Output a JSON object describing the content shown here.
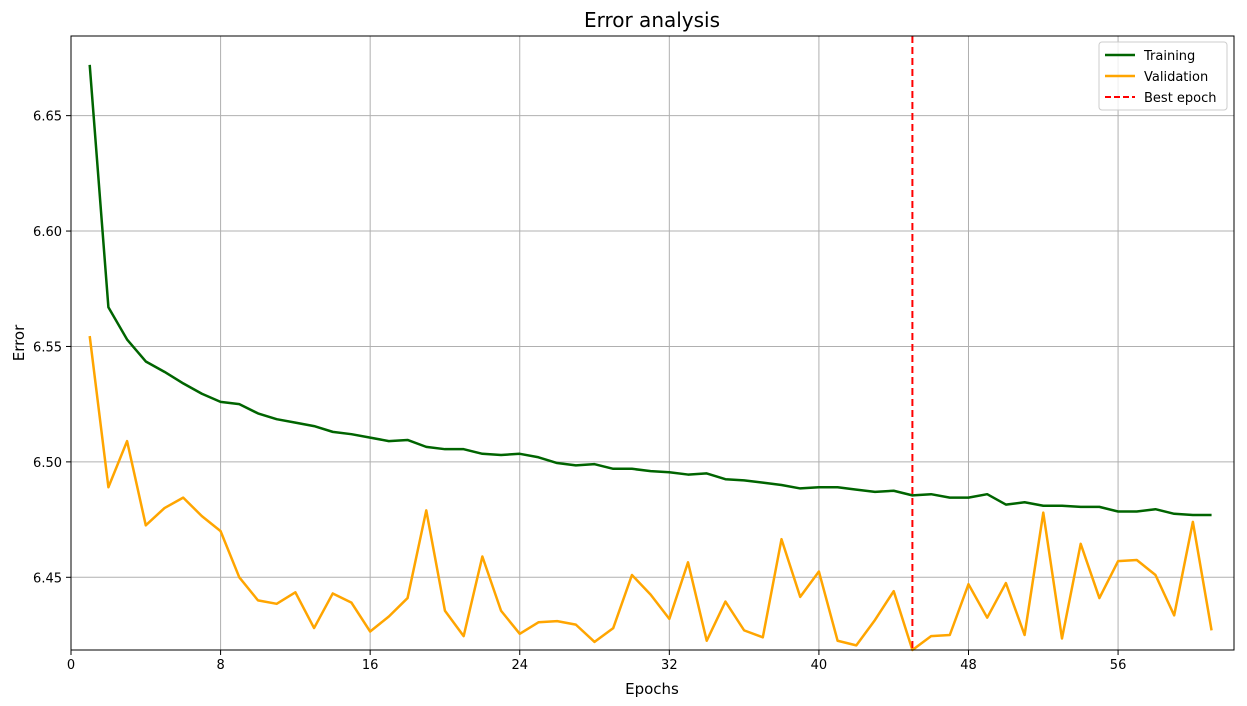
{
  "chart_data": {
    "type": "line",
    "title": "Error analysis",
    "xlabel": "Epochs",
    "ylabel": "Error",
    "xlim": [
      0,
      62.2
    ],
    "ylim": [
      6.4185,
      6.6845
    ],
    "xticks": [
      0,
      8,
      16,
      24,
      32,
      40,
      48,
      56
    ],
    "yticks": [
      6.45,
      6.5,
      6.55,
      6.6,
      6.65
    ],
    "ytick_labels": [
      "6.45",
      "6.50",
      "6.55",
      "6.60",
      "6.65"
    ],
    "grid": true,
    "legend_position": "top-right",
    "x": [
      1,
      2,
      3,
      4,
      5,
      6,
      7,
      8,
      9,
      10,
      11,
      12,
      13,
      14,
      15,
      16,
      17,
      18,
      19,
      20,
      21,
      22,
      23,
      24,
      25,
      26,
      27,
      28,
      29,
      30,
      31,
      32,
      33,
      34,
      35,
      36,
      37,
      38,
      39,
      40,
      41,
      42,
      43,
      44,
      45,
      46,
      47,
      48,
      49,
      50,
      51,
      52,
      53,
      54,
      55,
      56,
      57,
      58,
      59,
      60,
      61
    ],
    "series": [
      {
        "name": "Training",
        "color": "#006400",
        "style": "solid",
        "values": [
          6.672,
          6.567,
          6.553,
          6.5435,
          6.539,
          6.534,
          6.5295,
          6.526,
          6.525,
          6.521,
          6.5185,
          6.517,
          6.5155,
          6.513,
          6.512,
          6.5105,
          6.509,
          6.5095,
          6.5065,
          6.5055,
          6.5055,
          6.5035,
          6.503,
          6.5035,
          6.502,
          6.4995,
          6.4985,
          6.499,
          6.497,
          6.497,
          6.496,
          6.4955,
          6.4945,
          6.495,
          6.4925,
          6.492,
          6.491,
          6.49,
          6.4885,
          6.489,
          6.489,
          6.488,
          6.487,
          6.4875,
          6.4855,
          6.486,
          6.4845,
          6.4845,
          6.486,
          6.4815,
          6.4825,
          6.481,
          6.481,
          6.4805,
          6.4805,
          6.4785,
          6.4785,
          6.4795,
          6.4775,
          6.477,
          6.477
        ]
      },
      {
        "name": "Validation",
        "color": "#ffa500",
        "style": "solid",
        "values": [
          6.5545,
          6.489,
          6.509,
          6.4725,
          6.48,
          6.4845,
          6.4765,
          6.47,
          6.45,
          6.44,
          6.4385,
          6.4435,
          6.428,
          6.443,
          6.439,
          6.4265,
          6.433,
          6.441,
          6.479,
          6.4355,
          6.4245,
          6.459,
          6.4355,
          6.4255,
          6.4305,
          6.431,
          6.4295,
          6.422,
          6.428,
          6.451,
          6.4425,
          6.432,
          6.4565,
          6.4225,
          6.4395,
          6.427,
          6.424,
          6.4665,
          6.4415,
          6.4525,
          6.4225,
          6.4205,
          6.4315,
          6.444,
          6.4185,
          6.4245,
          6.425,
          6.447,
          6.4325,
          6.4475,
          6.425,
          6.478,
          6.4235,
          6.4645,
          6.441,
          6.457,
          6.4575,
          6.451,
          6.4335,
          6.474,
          6.427
        ]
      }
    ],
    "vlines": [
      {
        "name": "Best epoch",
        "x": 45,
        "color": "#ff0000",
        "style": "dashed"
      }
    ]
  }
}
